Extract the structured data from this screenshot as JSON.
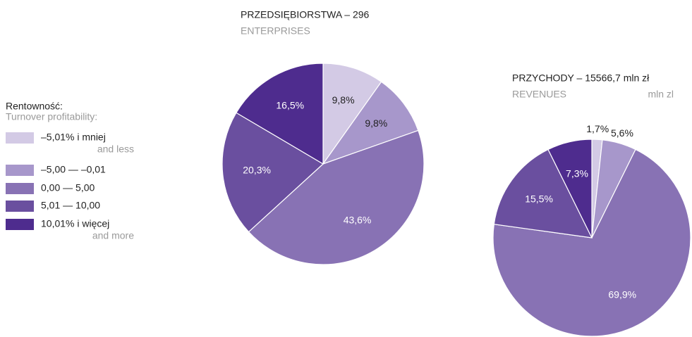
{
  "legend": {
    "title": "Rentowność:",
    "subtitle": "Turnover profitability:",
    "items": [
      {
        "label": "–5,01% i mniej",
        "sublabel": "and less",
        "color": "#d3cae5"
      },
      {
        "label": "–5,00 — –0,01",
        "color": "#a797cb"
      },
      {
        "label": "0,00 —   5,00",
        "color": "#8872b4"
      },
      {
        "label": "5,01 — 10,00",
        "color": "#6a4f9f"
      },
      {
        "label": "10,01% i więcej",
        "sublabel": "and more",
        "color": "#4e2c8e"
      }
    ]
  },
  "chart_data": [
    {
      "type": "pie",
      "title": "PRZEDSIĘBIORSTWA – 296",
      "subtitle": "ENTERPRISES",
      "values": [
        9.8,
        9.8,
        43.6,
        20.3,
        16.5
      ],
      "value_labels": [
        "9,8%",
        "9,8%",
        "43,6%",
        "20,3%",
        "16,5%"
      ]
    },
    {
      "type": "pie",
      "title": "PRZYCHODY – 15566,7 mln zł",
      "subtitle": "REVENUES",
      "unit": "mln zl",
      "values": [
        1.7,
        5.6,
        69.9,
        15.5,
        7.3
      ],
      "value_labels": [
        "1,7%",
        "5,6%",
        "69,9%",
        "15,5%",
        "7,3%"
      ]
    }
  ]
}
